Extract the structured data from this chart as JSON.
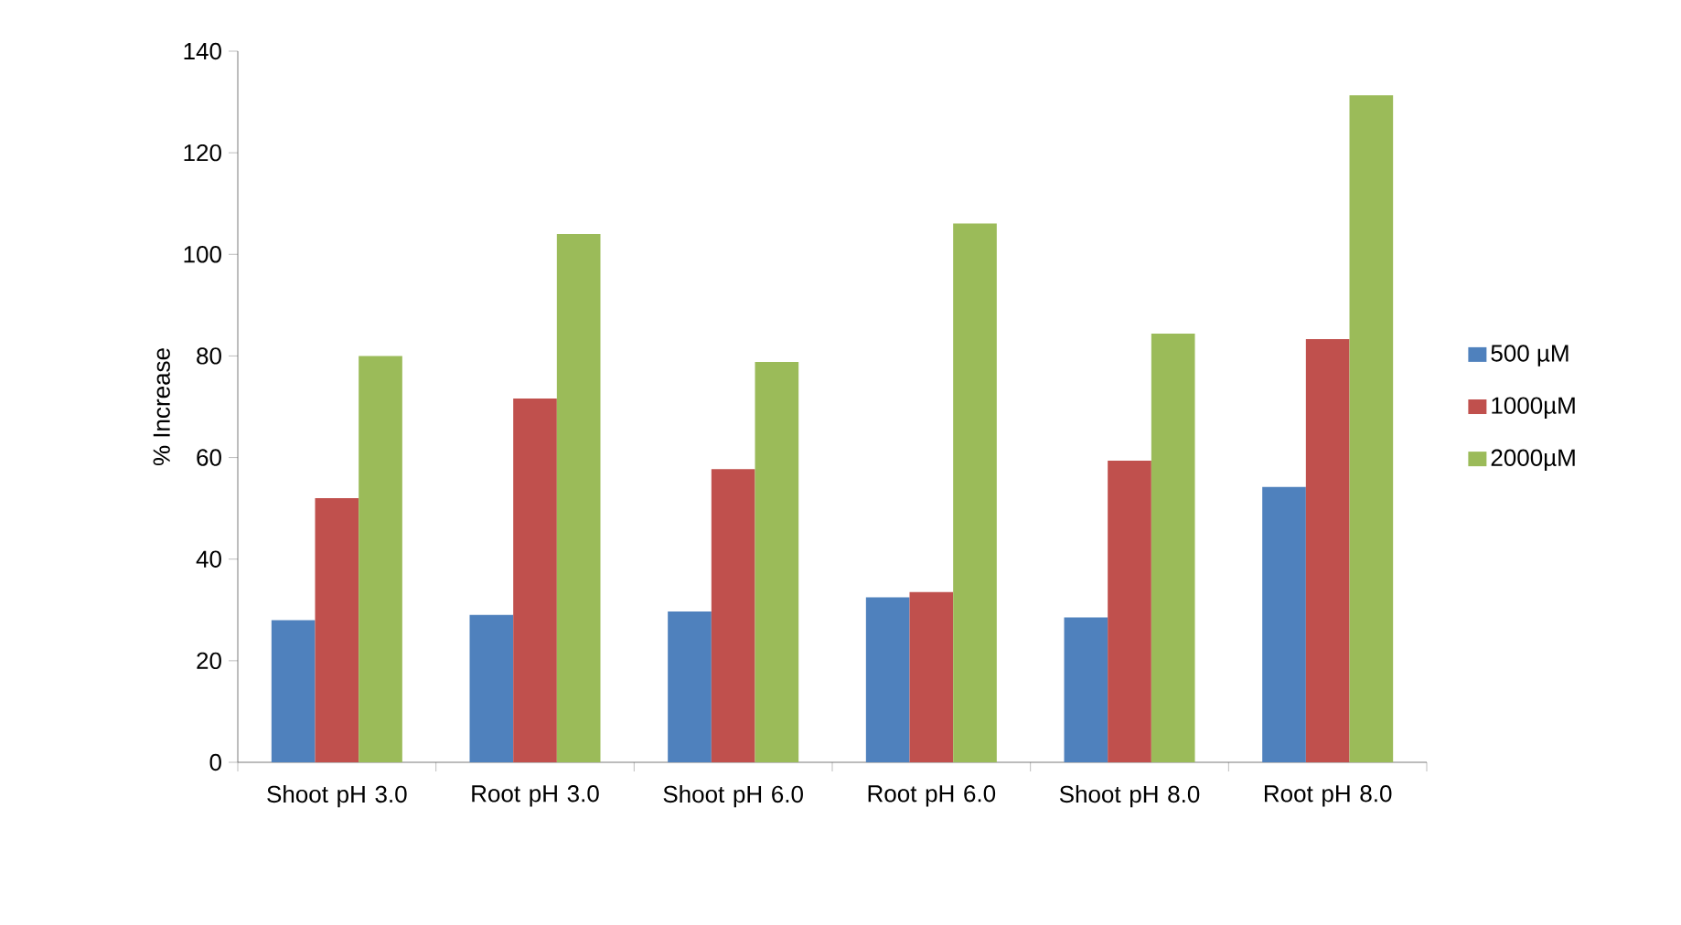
{
  "chart_data": {
    "type": "bar",
    "ylabel": "% Increase",
    "categories": [
      "Shoot pH 3.0",
      "Root pH 3.0",
      "Shoot pH 6.0",
      "Root pH 6.0",
      "Shoot pH 8.0",
      "Root pH 8.0"
    ],
    "series": [
      {
        "name": "500 µM",
        "color": "#4f81bd",
        "values": [
          28,
          29,
          29.7,
          32.5,
          28.5,
          54.2
        ]
      },
      {
        "name": "1000µM",
        "color": "#c0504d",
        "values": [
          52,
          71.6,
          57.7,
          33.5,
          59.4,
          83.3
        ]
      },
      {
        "name": "2000µM",
        "color": "#9bbb59",
        "values": [
          80,
          104,
          78.8,
          106.1,
          84.4,
          131.3
        ]
      }
    ],
    "ylim": [
      0,
      140
    ],
    "yticks": [
      0,
      20,
      40,
      60,
      80,
      100,
      120,
      140
    ],
    "grid": false,
    "legend": "right"
  }
}
